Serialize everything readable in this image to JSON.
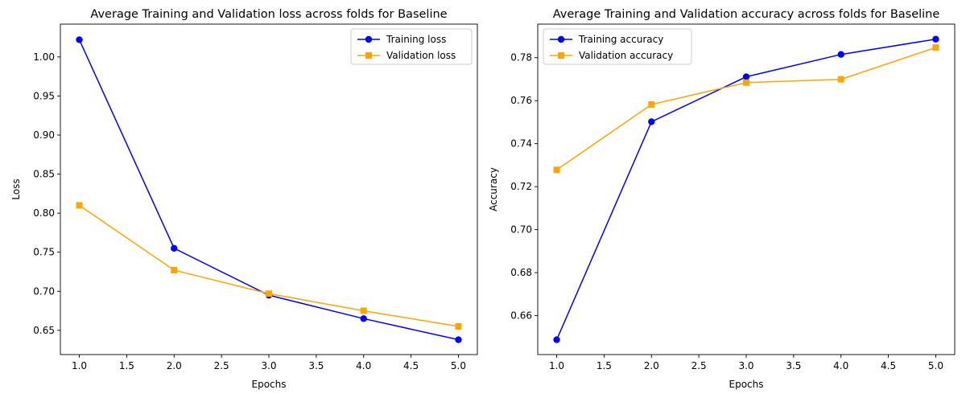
{
  "chart_data": [
    {
      "type": "line",
      "title": "Average Training and Validation loss across folds for Baseline",
      "xlabel": "Epochs",
      "ylabel": "Loss",
      "x": [
        1.0,
        2.0,
        3.0,
        4.0,
        5.0
      ],
      "xlim": [
        0.8,
        5.2
      ],
      "ylim": [
        0.619,
        1.042
      ],
      "xticks": [
        "1.0",
        "1.5",
        "2.0",
        "2.5",
        "3.0",
        "3.5",
        "4.0",
        "4.5",
        "5.0"
      ],
      "yticks": [
        "0.65",
        "0.70",
        "0.75",
        "0.80",
        "0.85",
        "0.90",
        "0.95",
        "1.00"
      ],
      "grid": false,
      "legend_position": "top-right",
      "series": [
        {
          "name": "Training loss",
          "color": "#0000ff",
          "marker": "circle",
          "values": [
            1.022,
            0.755,
            0.695,
            0.665,
            0.638
          ]
        },
        {
          "name": "Validation loss",
          "color": "#ffa500",
          "marker": "square",
          "values": [
            0.81,
            0.727,
            0.697,
            0.675,
            0.655
          ]
        }
      ]
    },
    {
      "type": "line",
      "title": "Average Training and Validation accuracy across folds for Baseline",
      "xlabel": "Epochs",
      "ylabel": "Accuracy",
      "x": [
        1.0,
        2.0,
        3.0,
        4.0,
        5.0
      ],
      "xlim": [
        0.8,
        5.2
      ],
      "ylim": [
        0.6419,
        0.7956
      ],
      "xticks": [
        "1.0",
        "1.5",
        "2.0",
        "2.5",
        "3.0",
        "3.5",
        "4.0",
        "4.5",
        "5.0"
      ],
      "yticks": [
        "0.66",
        "0.68",
        "0.70",
        "0.72",
        "0.74",
        "0.76",
        "0.78"
      ],
      "grid": false,
      "legend_position": "top-left",
      "series": [
        {
          "name": "Training accuracy",
          "color": "#0000ff",
          "marker": "circle",
          "values": [
            0.6488,
            0.7502,
            0.7711,
            0.7815,
            0.7886
          ]
        },
        {
          "name": "Validation accuracy",
          "color": "#ffa500",
          "marker": "square",
          "values": [
            0.7278,
            0.7582,
            0.7684,
            0.7699,
            0.7847
          ]
        }
      ]
    }
  ]
}
